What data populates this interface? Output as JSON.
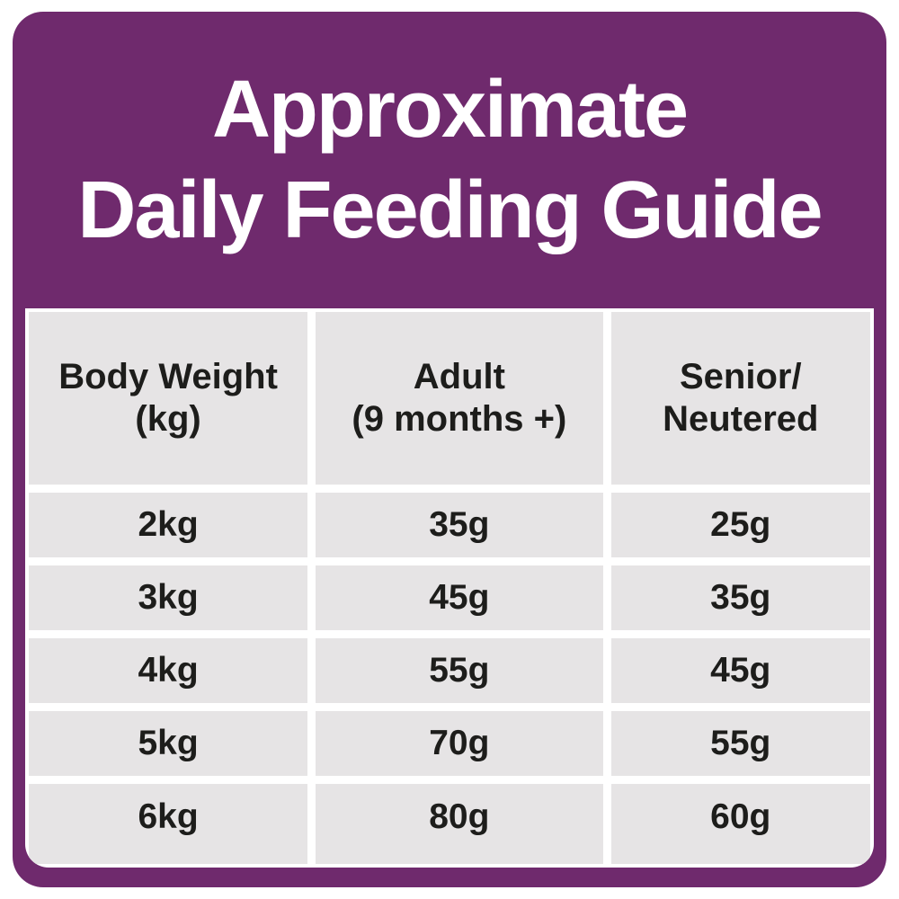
{
  "title": {
    "line1": "Approximate",
    "line2": "Daily Feeding Guide"
  },
  "table": {
    "headers": [
      {
        "line1": "Body Weight",
        "line2": "(kg)"
      },
      {
        "line1": "Adult",
        "line2": "(9 months +)"
      },
      {
        "line1": "Senior/",
        "line2": "Neutered"
      }
    ],
    "rows": [
      {
        "weight": "2kg",
        "adult": "35g",
        "senior": "25g"
      },
      {
        "weight": "3kg",
        "adult": "45g",
        "senior": "35g"
      },
      {
        "weight": "4kg",
        "adult": "55g",
        "senior": "45g"
      },
      {
        "weight": "5kg",
        "adult": "70g",
        "senior": "55g"
      },
      {
        "weight": "6kg",
        "adult": "80g",
        "senior": "60g"
      }
    ]
  },
  "chart_data": {
    "type": "table",
    "title": "Approximate Daily Feeding Guide",
    "columns": [
      "Body Weight (kg)",
      "Adult (9 months +)",
      "Senior/Neutered"
    ],
    "rows": [
      [
        "2kg",
        "35g",
        "25g"
      ],
      [
        "3kg",
        "45g",
        "35g"
      ],
      [
        "4kg",
        "55g",
        "45g"
      ],
      [
        "5kg",
        "70g",
        "55g"
      ],
      [
        "6kg",
        "80g",
        "60g"
      ]
    ]
  },
  "colors": {
    "brand_purple": "#6f2a6d",
    "cell_gray": "#e6e4e5",
    "text_dark": "#1d1d1b",
    "gap_white": "#ffffff"
  }
}
